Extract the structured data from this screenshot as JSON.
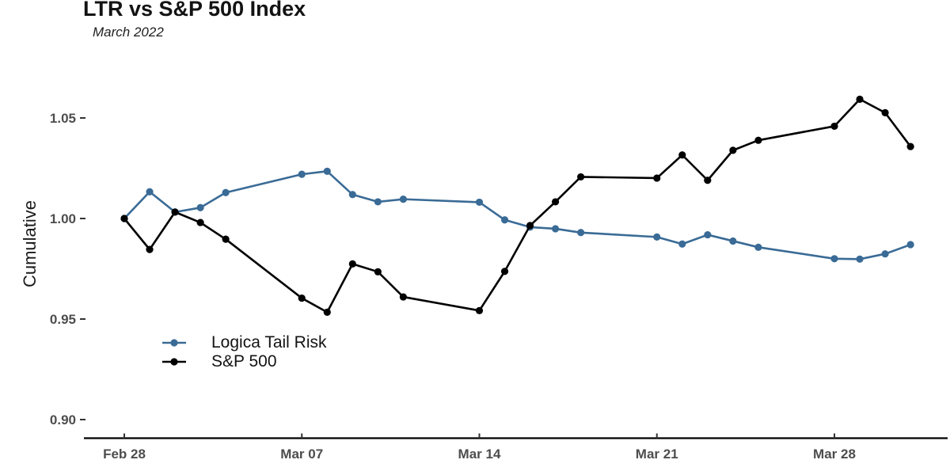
{
  "page": {
    "title": "LTR vs S&P 500 Index",
    "subtitle": "March 2022"
  },
  "chart_data": {
    "type": "line",
    "title": "LTR vs S&P 500 Index",
    "subtitle": "March 2022",
    "xlabel": "",
    "ylabel": "Cumulative",
    "grid": false,
    "legend_position": "inside bottom-left",
    "categories": [
      "Feb 28",
      "Mar 01",
      "Mar 02",
      "Mar 03",
      "Mar 04",
      "Mar 07",
      "Mar 08",
      "Mar 09",
      "Mar 10",
      "Mar 11",
      "Mar 14",
      "Mar 15",
      "Mar 16",
      "Mar 17",
      "Mar 18",
      "Mar 21",
      "Mar 22",
      "Mar 23",
      "Mar 24",
      "Mar 25",
      "Mar 28",
      "Mar 29",
      "Mar 30",
      "Mar 31"
    ],
    "day_offsets": [
      0,
      1,
      2,
      3,
      4,
      7,
      8,
      9,
      10,
      11,
      14,
      15,
      16,
      17,
      18,
      21,
      22,
      23,
      24,
      25,
      28,
      29,
      30,
      31
    ],
    "series": [
      {
        "name": "Logica Tail Risk",
        "color": "#3A6B96",
        "values": [
          1.0,
          1.0133,
          1.0032,
          1.0054,
          1.0129,
          1.022,
          1.0235,
          1.0119,
          1.0083,
          1.0096,
          1.0081,
          0.9993,
          0.9957,
          0.9949,
          0.993,
          0.9908,
          0.9873,
          0.9919,
          0.9888,
          0.9857,
          0.98,
          0.9798,
          0.9824,
          0.987
        ]
      },
      {
        "name": "S&P 500",
        "color": "#000000",
        "values": [
          1.0,
          0.9846,
          1.0032,
          0.998,
          0.9897,
          0.9604,
          0.9534,
          0.9774,
          0.9735,
          0.961,
          0.9542,
          0.9737,
          0.9965,
          1.0083,
          1.0207,
          1.0201,
          1.0316,
          1.019,
          1.0339,
          1.0389,
          1.0459,
          1.0593,
          1.0526,
          1.0358
        ]
      }
    ],
    "x_ticks": [
      {
        "label": "Feb 28",
        "day": 0
      },
      {
        "label": "Mar 07",
        "day": 7
      },
      {
        "label": "Mar 14",
        "day": 14
      },
      {
        "label": "Mar 21",
        "day": 21
      },
      {
        "label": "Mar 28",
        "day": 28
      }
    ],
    "y_ticks": [
      0.9,
      0.95,
      1.0,
      1.05
    ],
    "ylim": [
      0.89,
      1.07
    ],
    "xlim_days": [
      -1.8,
      32.5
    ],
    "axis_color": "#000000",
    "tick_label_color": "#4d4d4d"
  }
}
